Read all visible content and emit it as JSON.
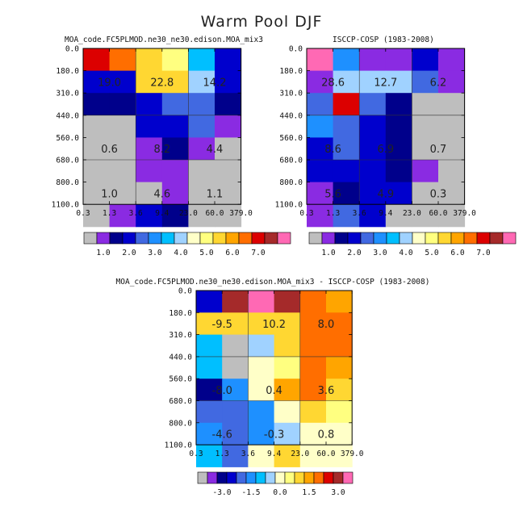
{
  "title": "Warm Pool DJF",
  "chart_data": [
    {
      "type": "heatmap",
      "title": "MOA_code.FC5PLMOD.ne30_ne30.edison.MOA_mix3",
      "x_ticks": [
        "0.3",
        "1.3",
        "3.6",
        "9.4",
        "23.0",
        "60.0",
        "379.0"
      ],
      "y_ticks": [
        "0.0",
        "180.0",
        "310.0",
        "440.0",
        "560.0",
        "680.0",
        "800.0",
        "1100.0"
      ],
      "levels": [
        "<0.5",
        "0.5-1.0",
        "1.0-1.5",
        "1.5-2.0",
        "2.0-2.5",
        "2.5-3.0",
        "3.0-3.5",
        "3.5-4.0",
        "4.0-4.5",
        "4.5-5.0",
        "5.0-5.5",
        "5.5-6.0",
        "6.0-6.5",
        "6.5-7.0",
        "7.0-7.5",
        ">7.5"
      ],
      "level_colors": [
        "#bebebe",
        "#8a2be2",
        "#00008b",
        "#0000cd",
        "#4169e1",
        "#1e90ff",
        "#00bfff",
        "#a0d2ff",
        "#ffffc8",
        "#ffff80",
        "#ffd732",
        "#ffa500",
        "#ff6e00",
        "#dc0000",
        "#a52a2a",
        "#ff69b4"
      ],
      "cells": [
        [
          13,
          12,
          10,
          9,
          6,
          3
        ],
        [
          3,
          3,
          10,
          10,
          7,
          3
        ],
        [
          2,
          2,
          3,
          4,
          4,
          2
        ],
        [
          0,
          0,
          3,
          3,
          4,
          1
        ],
        [
          0,
          0,
          1,
          2,
          1,
          0
        ],
        [
          0,
          0,
          1,
          1,
          0,
          0
        ],
        [
          0,
          0,
          0,
          1,
          0,
          0
        ],
        [
          0,
          1,
          3,
          2,
          0,
          0
        ]
      ],
      "annotations": [
        "19.0",
        "22.8",
        "14.2",
        "0.6",
        "8.2",
        "4.4",
        "1.0",
        "4.6",
        "1.1"
      ],
      "colorbar_labels": [
        "1.0",
        "2.0",
        "3.0",
        "4.0",
        "5.0",
        "6.0",
        "7.0"
      ]
    },
    {
      "type": "heatmap",
      "title": "ISCCP-COSP (1983-2008)",
      "x_ticks": [
        "0.3",
        "1.3",
        "3.6",
        "9.4",
        "23.0",
        "60.0",
        "379.0"
      ],
      "y_ticks": [
        "0.0",
        "180.0",
        "310.0",
        "440.0",
        "560.0",
        "680.0",
        "800.0",
        "1100.0"
      ],
      "levels": [
        "<0.5",
        "0.5-1.0",
        "1.0-1.5",
        "1.5-2.0",
        "2.0-2.5",
        "2.5-3.0",
        "3.0-3.5",
        "3.5-4.0",
        "4.0-4.5",
        "4.5-5.0",
        "5.0-5.5",
        "5.5-6.0",
        "6.0-6.5",
        "6.5-7.0",
        "7.0-7.5",
        ">7.5"
      ],
      "level_colors": [
        "#bebebe",
        "#8a2be2",
        "#00008b",
        "#0000cd",
        "#4169e1",
        "#1e90ff",
        "#00bfff",
        "#a0d2ff",
        "#ffffc8",
        "#ffff80",
        "#ffd732",
        "#ffa500",
        "#ff6e00",
        "#dc0000",
        "#a52a2a",
        "#ff69b4"
      ],
      "cells": [
        [
          15,
          5,
          1,
          1,
          3,
          1
        ],
        [
          1,
          7,
          7,
          7,
          4,
          1
        ],
        [
          4,
          13,
          4,
          2,
          0,
          0
        ],
        [
          5,
          4,
          3,
          2,
          0,
          0
        ],
        [
          3,
          4,
          3,
          2,
          0,
          0
        ],
        [
          3,
          3,
          3,
          2,
          1,
          0
        ],
        [
          1,
          2,
          3,
          3,
          0,
          0
        ],
        [
          1,
          4,
          3,
          0,
          0,
          0
        ]
      ],
      "annotations": [
        "28.6",
        "12.7",
        "6.2",
        "8.6",
        "6.9",
        "0.7",
        "5.6",
        "4.9",
        "0.3"
      ],
      "colorbar_labels": [
        "1.0",
        "2.0",
        "3.0",
        "4.0",
        "5.0",
        "6.0",
        "7.0"
      ]
    },
    {
      "type": "heatmap",
      "title": "MOA_code.FC5PLMOD.ne30_ne30.edison.MOA_mix3 - ISCCP-COSP (1983-2008)",
      "x_ticks": [
        "0.3",
        "1.3",
        "3.6",
        "9.4",
        "23.0",
        "60.0",
        "379.0"
      ],
      "y_ticks": [
        "0.0",
        "180.0",
        "310.0",
        "440.0",
        "560.0",
        "680.0",
        "800.0",
        "1100.0"
      ],
      "levels": [
        "<-3.5",
        "-3.5--3.0",
        "-3.0--2.5",
        "-2.5--2.0",
        "-2.0--1.5",
        "-1.5--1.0",
        "-1.0--0.5",
        "-0.5-0.0",
        "0.0-0.5",
        "0.5-1.0",
        "1.0-1.5",
        "1.5-2.0",
        "2.0-2.5",
        "2.5-3.0",
        "3.0-3.5",
        ">3.5"
      ],
      "level_colors": [
        "#bebebe",
        "#8a2be2",
        "#00008b",
        "#0000cd",
        "#4169e1",
        "#1e90ff",
        "#00bfff",
        "#a0d2ff",
        "#ffffc8",
        "#ffff80",
        "#ffd732",
        "#ffa500",
        "#ff6e00",
        "#dc0000",
        "#a52a2a",
        "#ff69b4"
      ],
      "cells": [
        [
          3,
          14,
          15,
          14,
          12,
          11
        ],
        [
          10,
          10,
          10,
          10,
          12,
          12
        ],
        [
          6,
          0,
          7,
          10,
          12,
          12
        ],
        [
          6,
          0,
          8,
          9,
          12,
          11
        ],
        [
          2,
          5,
          8,
          11,
          12,
          10
        ],
        [
          4,
          4,
          5,
          8,
          10,
          9
        ],
        [
          5,
          4,
          5,
          7,
          8,
          8
        ],
        [
          6,
          4,
          8,
          10,
          8,
          8
        ]
      ],
      "annotations": [
        "-9.5",
        "10.2",
        "8.0",
        "-8.0",
        "0.4",
        "3.6",
        "-4.6",
        "-0.3",
        "0.8"
      ],
      "colorbar_labels": [
        "-3.0",
        "-1.5",
        "0.0",
        "1.5",
        "3.0"
      ]
    }
  ]
}
